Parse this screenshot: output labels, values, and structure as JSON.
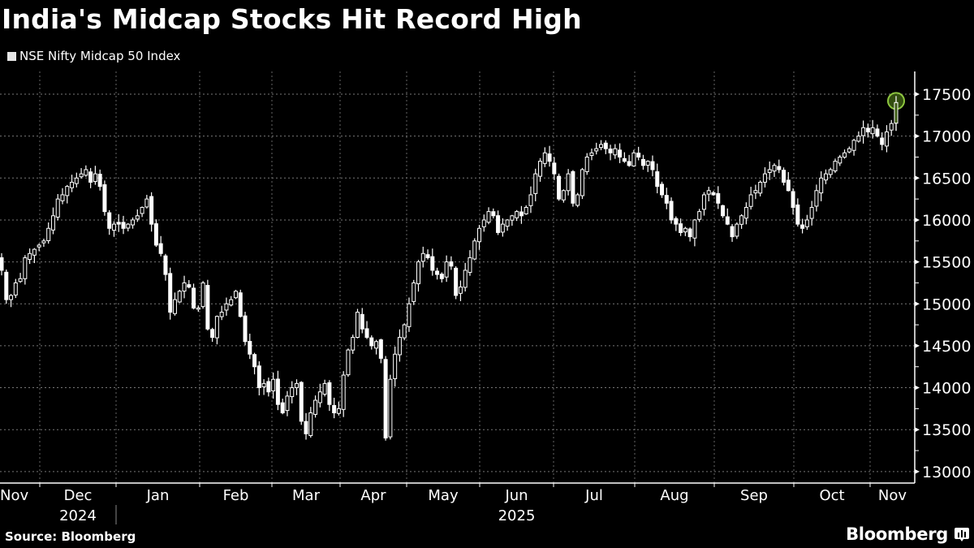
{
  "header": {
    "title": "India's Midcap Stocks Hit Record High",
    "legend_label": "NSE Nifty Midcap 50 Index",
    "legend_color": "#e6e6e6"
  },
  "footer": {
    "source": "Source: Bloomberg",
    "brand": "Bloomberg",
    "brand_icon": "bloomberg-chart-icon"
  },
  "highlight": {
    "fill": "#3b5a12",
    "stroke": "#8dc63f"
  },
  "chart_data": {
    "type": "candlestick",
    "title": "India's Midcap Stocks Hit Record High",
    "series_name": "NSE Nifty Midcap 50 Index",
    "xlabel": "",
    "ylabel": "",
    "ylim": [
      13000,
      17700
    ],
    "yticks": [
      13000,
      13500,
      14000,
      14500,
      15000,
      15500,
      16000,
      16500,
      17000,
      17500
    ],
    "x_month_labels": [
      "Nov",
      "Dec",
      "Jan",
      "Feb",
      "Mar",
      "Apr",
      "May",
      "Jun",
      "Jul",
      "Aug",
      "Sep",
      "Oct",
      "Nov"
    ],
    "x_year_labels": [
      {
        "label": "2024",
        "under": "Dec"
      },
      {
        "label": "2025",
        "under": "Jun"
      }
    ],
    "grid": true,
    "legend_position": "top-left",
    "annotation": "Record high circled at latest close (~17400)",
    "approx_closes": [
      15400,
      15050,
      15100,
      15250,
      15300,
      15550,
      15600,
      15650,
      15700,
      15750,
      15900,
      16050,
      16250,
      16300,
      16400,
      16450,
      16500,
      16550,
      16600,
      16450,
      16550,
      16400,
      16100,
      15900,
      15950,
      15950,
      15900,
      15950,
      16000,
      16050,
      16150,
      16250,
      15950,
      15700,
      15600,
      15350,
      14900,
      15050,
      15150,
      15250,
      15200,
      14950,
      14950,
      15250,
      14700,
      14600,
      14850,
      14900,
      15000,
      15050,
      15150,
      14850,
      14550,
      14400,
      14250,
      14000,
      14050,
      13950,
      14100,
      13800,
      13700,
      13900,
      14000,
      14050,
      13600,
      13450,
      13700,
      13850,
      13950,
      14050,
      13800,
      13700,
      13750,
      14150,
      14450,
      14600,
      14900,
      14700,
      14600,
      14500,
      14550,
      14350,
      13400,
      14100,
      14400,
      14600,
      14750,
      15000,
      15250,
      15500,
      15600,
      15550,
      15400,
      15350,
      15300,
      15500,
      15450,
      15100,
      15200,
      15400,
      15550,
      15750,
      15900,
      16000,
      16100,
      16050,
      15850,
      15950,
      16000,
      16050,
      16100,
      16050,
      16150,
      16300,
      16550,
      16700,
      16800,
      16700,
      16550,
      16250,
      16350,
      16550,
      16200,
      16300,
      16600,
      16750,
      16800,
      16850,
      16900,
      16850,
      16800,
      16850,
      16750,
      16700,
      16650,
      16800,
      16750,
      16650,
      16700,
      16600,
      16400,
      16300,
      16200,
      16000,
      15950,
      15850,
      15900,
      15800,
      16000,
      16100,
      16300,
      16350,
      16300,
      16200,
      16050,
      15950,
      15800,
      15950,
      16050,
      16150,
      16300,
      16350,
      16450,
      16550,
      16600,
      16650,
      16600,
      16450,
      16350,
      16150,
      15950,
      15900,
      16000,
      16150,
      16350,
      16500,
      16550,
      16600,
      16700,
      16750,
      16800,
      16850,
      16950,
      17000,
      17100,
      17050,
      17100,
      17000,
      16900,
      17050,
      17150,
      17400
    ],
    "latest_value_approx": 17400
  }
}
